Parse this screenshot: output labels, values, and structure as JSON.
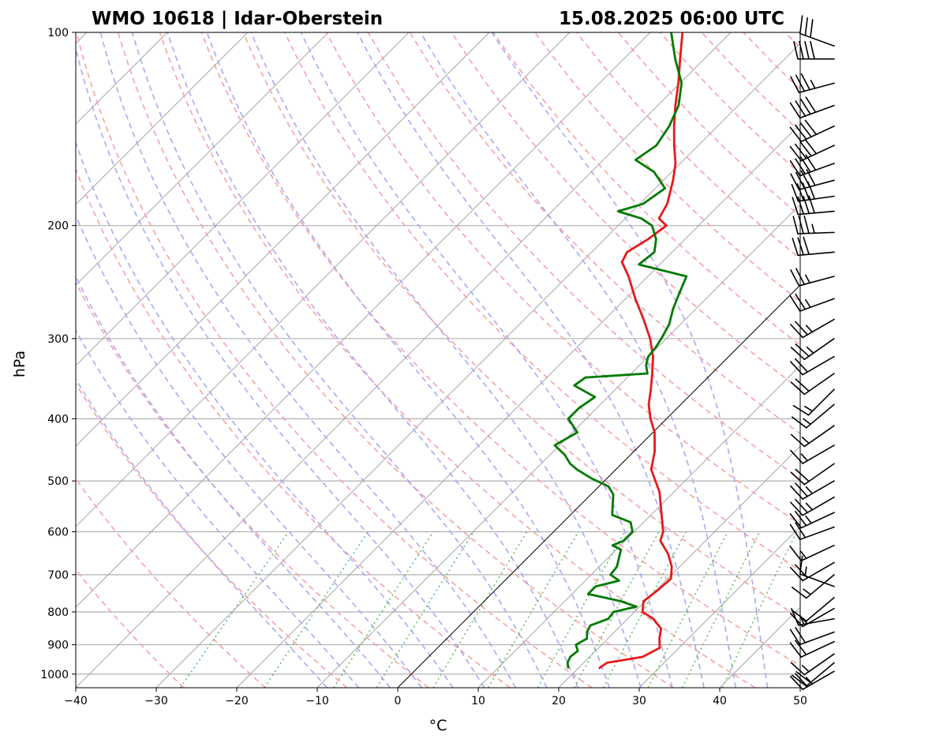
{
  "chart_data": {
    "type": "line",
    "title_left": "WMO 10618 | Idar-Oberstein",
    "title_right": "15.08.2025 06:00 UTC",
    "xlabel": "°C",
    "ylabel": "hPa",
    "xlim": [
      -40,
      50
    ],
    "ylim": [
      1050,
      100
    ],
    "y_scale": "log",
    "x_ticks": [
      -40,
      -30,
      -20,
      -10,
      0,
      10,
      20,
      30,
      40,
      50
    ],
    "x_tick_labels": [
      "−40",
      "−30",
      "−20",
      "−10",
      "0",
      "10",
      "20",
      "30",
      "40",
      "50"
    ],
    "y_ticks": [
      1000,
      900,
      800,
      700,
      600,
      500,
      400,
      300,
      200,
      100
    ],
    "y_tick_labels": [
      "1000",
      "900",
      "800",
      "700",
      "600",
      "500",
      "400",
      "300",
      "200",
      "100"
    ],
    "grid": true,
    "colors": {
      "temperature": "#e41a1c",
      "dewpoint": "#007a00",
      "dry_adiabats": "#f4a3a3",
      "moist_adiabats": "#a9a9f0",
      "mixing_ratio": "#66bb66",
      "isotherms": "#9a9a9a",
      "zero_isotherm": "#000000",
      "barbs": "#000000"
    },
    "series": [
      {
        "key": "temperature",
        "values": [
          [
            980,
            22.6
          ],
          [
            960,
            22.9
          ],
          [
            940,
            26.6
          ],
          [
            910,
            27.6
          ],
          [
            880,
            26.4
          ],
          [
            850,
            25.4
          ],
          [
            820,
            23.2
          ],
          [
            800,
            21.0
          ],
          [
            770,
            19.8
          ],
          [
            740,
            20.2
          ],
          [
            710,
            20.4
          ],
          [
            680,
            19.0
          ],
          [
            650,
            17.0
          ],
          [
            620,
            14.4
          ],
          [
            600,
            13.6
          ],
          [
            560,
            11.0
          ],
          [
            520,
            8.2
          ],
          [
            480,
            4.4
          ],
          [
            450,
            2.6
          ],
          [
            420,
            0.2
          ],
          [
            400,
            -2.0
          ],
          [
            380,
            -4.0
          ],
          [
            360,
            -5.6
          ],
          [
            340,
            -7.4
          ],
          [
            320,
            -9.4
          ],
          [
            300,
            -12.0
          ],
          [
            280,
            -15.2
          ],
          [
            260,
            -18.8
          ],
          [
            240,
            -22.4
          ],
          [
            228,
            -25.0
          ],
          [
            220,
            -25.6
          ],
          [
            210,
            -24.6
          ],
          [
            200,
            -24.0
          ],
          [
            195,
            -25.8
          ],
          [
            185,
            -26.6
          ],
          [
            170,
            -28.8
          ],
          [
            160,
            -30.6
          ],
          [
            150,
            -33.0
          ],
          [
            140,
            -35.4
          ],
          [
            130,
            -37.8
          ],
          [
            120,
            -40.2
          ],
          [
            110,
            -43.0
          ],
          [
            100,
            -46.0
          ]
        ]
      },
      {
        "key": "dewpoint",
        "values": [
          [
            980,
            18.8
          ],
          [
            960,
            18.0
          ],
          [
            940,
            17.6
          ],
          [
            920,
            17.8
          ],
          [
            900,
            16.8
          ],
          [
            880,
            17.4
          ],
          [
            860,
            16.6
          ],
          [
            840,
            16.2
          ],
          [
            820,
            17.6
          ],
          [
            800,
            17.4
          ],
          [
            785,
            19.6
          ],
          [
            770,
            17.0
          ],
          [
            750,
            12.0
          ],
          [
            730,
            12.0
          ],
          [
            715,
            14.2
          ],
          [
            700,
            12.4
          ],
          [
            680,
            12.2
          ],
          [
            660,
            11.4
          ],
          [
            640,
            10.6
          ],
          [
            630,
            9.0
          ],
          [
            620,
            9.8
          ],
          [
            600,
            9.8
          ],
          [
            580,
            8.4
          ],
          [
            565,
            5.2
          ],
          [
            545,
            4.0
          ],
          [
            525,
            2.8
          ],
          [
            510,
            1.2
          ],
          [
            495,
            -2.0
          ],
          [
            480,
            -4.8
          ],
          [
            470,
            -6.4
          ],
          [
            455,
            -8.2
          ],
          [
            440,
            -10.6
          ],
          [
            420,
            -9.4
          ],
          [
            400,
            -12.2
          ],
          [
            385,
            -12.2
          ],
          [
            370,
            -11.6
          ],
          [
            355,
            -15.6
          ],
          [
            345,
            -15.2
          ],
          [
            340,
            -8.0
          ],
          [
            330,
            -9.2
          ],
          [
            320,
            -10.0
          ],
          [
            310,
            -10.2
          ],
          [
            300,
            -10.6
          ],
          [
            285,
            -11.4
          ],
          [
            270,
            -12.8
          ],
          [
            255,
            -14.0
          ],
          [
            240,
            -15.2
          ],
          [
            230,
            -22.6
          ],
          [
            220,
            -22.2
          ],
          [
            210,
            -23.6
          ],
          [
            200,
            -25.8
          ],
          [
            195,
            -28.0
          ],
          [
            190,
            -31.8
          ],
          [
            185,
            -29.6
          ],
          [
            175,
            -28.8
          ],
          [
            165,
            -32.2
          ],
          [
            158,
            -36.0
          ],
          [
            150,
            -35.2
          ],
          [
            140,
            -36.0
          ],
          [
            130,
            -37.4
          ],
          [
            120,
            -39.8
          ],
          [
            110,
            -43.6
          ],
          [
            100,
            -47.4
          ]
        ]
      }
    ],
    "wind_barbs": [
      {
        "p": 990,
        "speed_kt": 25,
        "dir_deg": 240
      },
      {
        "p": 960,
        "speed_kt": 20,
        "dir_deg": 230
      },
      {
        "p": 930,
        "speed_kt": 15,
        "dir_deg": 235
      },
      {
        "p": 890,
        "speed_kt": 20,
        "dir_deg": 245
      },
      {
        "p": 860,
        "speed_kt": 20,
        "dir_deg": 250
      },
      {
        "p": 820,
        "speed_kt": 15,
        "dir_deg": 260
      },
      {
        "p": 790,
        "speed_kt": 15,
        "dir_deg": 240
      },
      {
        "p": 760,
        "speed_kt": 10,
        "dir_deg": 230
      },
      {
        "p": 730,
        "speed_kt": 15,
        "dir_deg": 290
      },
      {
        "p": 700,
        "speed_kt": 15,
        "dir_deg": 230
      },
      {
        "p": 670,
        "speed_kt": 20,
        "dir_deg": 240
      },
      {
        "p": 630,
        "speed_kt": 15,
        "dir_deg": 245
      },
      {
        "p": 590,
        "speed_kt": 20,
        "dir_deg": 250
      },
      {
        "p": 560,
        "speed_kt": 25,
        "dir_deg": 245
      },
      {
        "p": 530,
        "speed_kt": 25,
        "dir_deg": 240
      },
      {
        "p": 500,
        "speed_kt": 25,
        "dir_deg": 240
      },
      {
        "p": 470,
        "speed_kt": 20,
        "dir_deg": 235
      },
      {
        "p": 440,
        "speed_kt": 15,
        "dir_deg": 240
      },
      {
        "p": 410,
        "speed_kt": 15,
        "dir_deg": 235
      },
      {
        "p": 380,
        "speed_kt": 15,
        "dir_deg": 230
      },
      {
        "p": 360,
        "speed_kt": 15,
        "dir_deg": 225
      },
      {
        "p": 340,
        "speed_kt": 20,
        "dir_deg": 235
      },
      {
        "p": 320,
        "speed_kt": 20,
        "dir_deg": 240
      },
      {
        "p": 300,
        "speed_kt": 25,
        "dir_deg": 235
      },
      {
        "p": 280,
        "speed_kt": 25,
        "dir_deg": 240
      },
      {
        "p": 260,
        "speed_kt": 25,
        "dir_deg": 250
      },
      {
        "p": 240,
        "speed_kt": 25,
        "dir_deg": 255
      },
      {
        "p": 220,
        "speed_kt": 30,
        "dir_deg": 265
      },
      {
        "p": 205,
        "speed_kt": 35,
        "dir_deg": 268
      },
      {
        "p": 190,
        "speed_kt": 40,
        "dir_deg": 265
      },
      {
        "p": 180,
        "speed_kt": 40,
        "dir_deg": 262
      },
      {
        "p": 170,
        "speed_kt": 40,
        "dir_deg": 255
      },
      {
        "p": 160,
        "speed_kt": 40,
        "dir_deg": 250
      },
      {
        "p": 150,
        "speed_kt": 40,
        "dir_deg": 245
      },
      {
        "p": 140,
        "speed_kt": 40,
        "dir_deg": 245
      },
      {
        "p": 130,
        "speed_kt": 40,
        "dir_deg": 250
      },
      {
        "p": 120,
        "speed_kt": 35,
        "dir_deg": 255
      },
      {
        "p": 110,
        "speed_kt": 40,
        "dir_deg": 270
      },
      {
        "p": 105,
        "speed_kt": 30,
        "dir_deg": 290
      }
    ]
  }
}
